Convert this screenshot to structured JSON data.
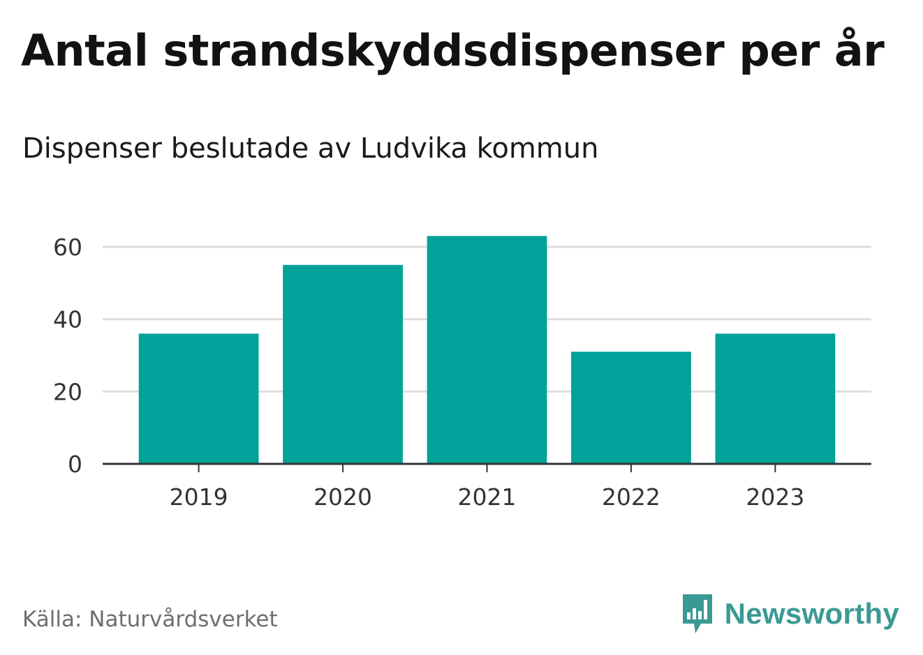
{
  "header": {
    "title": "Antal strandskyddsdispenser per år",
    "subtitle": "Dispenser beslutade av Ludvika kommun"
  },
  "footer": {
    "source": "Källa: Naturvårdsverket",
    "brand": "Newsworthy"
  },
  "colors": {
    "bar": "#00A29A",
    "gridline": "#dddddd",
    "axis": "#333333",
    "brand": "#3a9a93"
  },
  "chart_data": {
    "type": "bar",
    "title": "Antal strandskyddsdispenser per år",
    "subtitle": "Dispenser beslutade av Ludvika kommun",
    "categories": [
      "2019",
      "2020",
      "2021",
      "2022",
      "2023"
    ],
    "values": [
      36,
      55,
      63,
      31,
      36
    ],
    "xlabel": "",
    "ylabel": "",
    "ylim": [
      0,
      70
    ],
    "yticks": [
      0,
      20,
      40,
      60
    ],
    "grid": true,
    "legend": "none"
  }
}
